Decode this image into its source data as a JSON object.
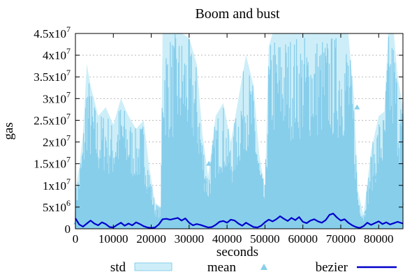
{
  "chart_data": {
    "type": "area",
    "title": "Boom and bust",
    "xlabel": "seconds",
    "ylabel": "gas",
    "xlim": [
      0,
      86400
    ],
    "ylim": [
      0,
      45000000
    ],
    "x_ticks": [
      {
        "value": 0,
        "label": "0"
      },
      {
        "value": 10000,
        "label": "10000"
      },
      {
        "value": 20000,
        "label": "20000"
      },
      {
        "value": 30000,
        "label": "30000"
      },
      {
        "value": 40000,
        "label": "40000"
      },
      {
        "value": 50000,
        "label": "50000"
      },
      {
        "value": 60000,
        "label": "60000"
      },
      {
        "value": 70000,
        "label": "70000"
      },
      {
        "value": 80000,
        "label": "80000"
      }
    ],
    "y_ticks": [
      {
        "value": 0,
        "base": "0",
        "exp": ""
      },
      {
        "value": 5000000,
        "base": "5x10",
        "exp": "6"
      },
      {
        "value": 10000000,
        "base": "1x10",
        "exp": "7"
      },
      {
        "value": 15000000,
        "base": "1.5x10",
        "exp": "7"
      },
      {
        "value": 20000000,
        "base": "2x10",
        "exp": "7"
      },
      {
        "value": 25000000,
        "base": "2.5x10",
        "exp": "7"
      },
      {
        "value": 30000000,
        "base": "3x10",
        "exp": "7"
      },
      {
        "value": 35000000,
        "base": "3.5x10",
        "exp": "7"
      },
      {
        "value": 40000000,
        "base": "4x10",
        "exp": "7"
      },
      {
        "value": 45000000,
        "base": "4.5x10",
        "exp": "7"
      }
    ],
    "grid": true,
    "legend_position": "bottom",
    "series": [
      {
        "name": "std",
        "kind": "band",
        "color": "#87ceeb",
        "fill": "#cdeef8",
        "envelope_x": [
          0,
          1000,
          2000,
          3000,
          4000,
          6000,
          8000,
          10000,
          12000,
          14000,
          16000,
          18000,
          19500,
          21000,
          22500,
          23000,
          24000,
          26000,
          28000,
          30000,
          32000,
          33500,
          35000,
          37000,
          39000,
          41000,
          43000,
          45000,
          47000,
          48500,
          50000,
          51000,
          52000,
          54000,
          56000,
          58000,
          60000,
          62000,
          64000,
          66000,
          68000,
          70000,
          72000,
          73500,
          74500,
          76000,
          78000,
          80000,
          81500,
          82500,
          84000,
          85000,
          86400
        ],
        "envelope_y": [
          9000000,
          14000000,
          22000000,
          38000000,
          33000000,
          26000000,
          28000000,
          24000000,
          30000000,
          26000000,
          23000000,
          25000000,
          14000000,
          6000000,
          5000000,
          45000000,
          45000000,
          45000000,
          45000000,
          44000000,
          38000000,
          22000000,
          12000000,
          26000000,
          29000000,
          20000000,
          30000000,
          40000000,
          33000000,
          17000000,
          9000000,
          42000000,
          45000000,
          45000000,
          45000000,
          45000000,
          45000000,
          45000000,
          45000000,
          45000000,
          45000000,
          45000000,
          45000000,
          30000000,
          9000000,
          3000000,
          18000000,
          26000000,
          27000000,
          45000000,
          45000000,
          35000000,
          28000000
        ]
      },
      {
        "name": "mean",
        "kind": "points",
        "color": "#87ceeb",
        "x": [
          200,
          2500,
          3600,
          5200,
          7400,
          9500,
          11200,
          13000,
          15500,
          17200,
          19300,
          21000,
          24000,
          27500,
          31000,
          34000,
          35200,
          37800,
          40200,
          42500,
          45300,
          47000,
          48800,
          51200,
          54000,
          57500,
          60300,
          62400,
          65200,
          67300,
          69600,
          72000,
          74300,
          76800,
          78900,
          80500,
          82300,
          84000,
          85200,
          86000
        ],
        "y": [
          1500000,
          12000000,
          5000000,
          9000000,
          13000000,
          4000000,
          11000000,
          7000000,
          12000000,
          3500000,
          9000000,
          2500000,
          16000000,
          8000000,
          21000000,
          11000000,
          15000000,
          7000000,
          13000000,
          5000000,
          9000000,
          14000000,
          3500000,
          17000000,
          8000000,
          20000000,
          11000000,
          7000000,
          19000000,
          6000000,
          15000000,
          10000000,
          28000000,
          4000000,
          12000000,
          8000000,
          6000000,
          13000000,
          10000000,
          6000000
        ]
      },
      {
        "name": "bezier",
        "kind": "line",
        "color": "#0000cc",
        "x": [
          0,
          1000,
          2000,
          3000,
          4000,
          5000,
          6000,
          7000,
          8000,
          9000,
          10000,
          11000,
          12000,
          13000,
          14000,
          15000,
          16000,
          17000,
          18000,
          19000,
          20000,
          21000,
          22000,
          23000,
          24000,
          25000,
          26000,
          27000,
          28000,
          29000,
          30000,
          31000,
          32000,
          33000,
          34000,
          35000,
          36000,
          37000,
          38000,
          39000,
          40000,
          41000,
          42000,
          43000,
          44000,
          45000,
          46000,
          47000,
          48000,
          49000,
          50000,
          51000,
          52000,
          53000,
          54000,
          55000,
          56000,
          57000,
          58000,
          59000,
          60000,
          61000,
          62000,
          63000,
          64000,
          65000,
          66000,
          67000,
          68000,
          69000,
          70000,
          71000,
          72000,
          73000,
          74000,
          75000,
          76000,
          77000,
          78000,
          79000,
          80000,
          81000,
          82000,
          83000,
          84000,
          85000,
          86400
        ],
        "y": [
          2400000,
          1000000,
          500000,
          1200000,
          1900000,
          1200000,
          800000,
          1500000,
          1100000,
          400000,
          300000,
          900000,
          1400000,
          700000,
          1200000,
          800000,
          1500000,
          1100000,
          600000,
          300000,
          200000,
          300000,
          1000000,
          2200000,
          2300000,
          2100000,
          2300000,
          2500000,
          1900000,
          2400000,
          1400000,
          800000,
          1100000,
          900000,
          600000,
          300000,
          400000,
          900000,
          1600000,
          1800000,
          1400000,
          2100000,
          1900000,
          1200000,
          700000,
          1400000,
          900000,
          400000,
          300000,
          700000,
          1500000,
          2100000,
          1700000,
          2200000,
          2900000,
          2300000,
          1800000,
          2500000,
          2000000,
          2700000,
          1600000,
          1300000,
          1900000,
          2200000,
          1700000,
          1400000,
          2000000,
          3200000,
          3500000,
          2600000,
          1900000,
          2200000,
          1400000,
          800000,
          400000,
          200000,
          600000,
          1400000,
          900000,
          1300000,
          1700000,
          1100000,
          1500000,
          1000000,
          1300000,
          1600000,
          1200000
        ]
      }
    ]
  }
}
